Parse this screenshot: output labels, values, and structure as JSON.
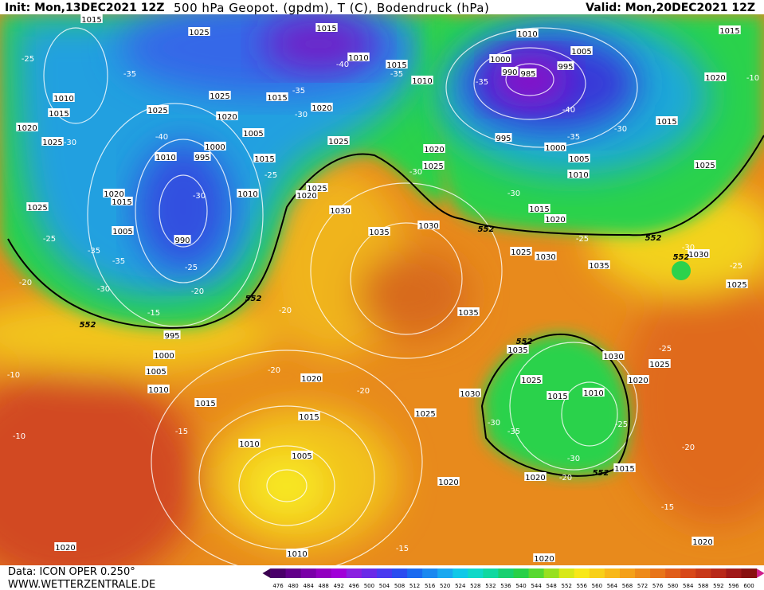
{
  "header": {
    "init": "Init: Mon,13DEC2021 12Z",
    "title": "500 hPa Geopot. (gpdm), T (C), Bodendruck (hPa)",
    "valid": "Valid: Mon,20DEC2021 12Z"
  },
  "footer": {
    "data": "Data: ICON OPER 0.250°",
    "site": "WWW.WETTERZENTRALE.DE"
  },
  "pressure_labels": [
    "1015",
    "1025",
    "1015",
    "1010",
    "1010",
    "1005",
    "1015",
    "1000",
    "990",
    "985",
    "995",
    "1020",
    "1015",
    "1010",
    "1010",
    "1015",
    "1020",
    "1025",
    "1025",
    "1025",
    "1020",
    "1015",
    "1020",
    "1005",
    "1000",
    "995",
    "1010",
    "1015",
    "1025",
    "1020",
    "1025",
    "995",
    "1000",
    "1005",
    "1010",
    "1015",
    "1025",
    "1020",
    "1015",
    "1025",
    "1010",
    "1020",
    "1025",
    "1030",
    "1005",
    "990",
    "1035",
    "1030",
    "1015",
    "1020",
    "1025",
    "1030",
    "1035",
    "1030",
    "1025",
    "1035",
    "1035",
    "1030",
    "1025",
    "1020",
    "995",
    "1000",
    "1005",
    "1010",
    "1015",
    "1020",
    "1015",
    "1010",
    "1005",
    "1030",
    "1025",
    "1025",
    "1015",
    "1010",
    "1020",
    "1020",
    "1015",
    "1020",
    "1010",
    "1020",
    "1020"
  ],
  "temperature_labels": [
    "-25",
    "-35",
    "-40",
    "-35",
    "-30",
    "-35",
    "-35",
    "-40",
    "-30",
    "-35",
    "-30",
    "-40",
    "-25",
    "-30",
    "-30",
    "-30",
    "-25",
    "-35",
    "-35",
    "-30",
    "-25",
    "-20",
    "-20",
    "-15",
    "-20",
    "-20",
    "-20",
    "-25",
    "-25",
    "-30",
    "-25",
    "-30",
    "-35",
    "-25",
    "-30",
    "-20",
    "-20",
    "-15",
    "-10",
    "-10",
    "-15",
    "-15",
    "-10"
  ],
  "geopotential_labels": [
    "552",
    "552",
    "552",
    "552",
    "552",
    "552",
    "552"
  ],
  "legend": [
    "476",
    "480",
    "484",
    "488",
    "492",
    "496",
    "500",
    "504",
    "508",
    "512",
    "516",
    "520",
    "524",
    "528",
    "532",
    "536",
    "540",
    "544",
    "548",
    "552",
    "556",
    "560",
    "564",
    "568",
    "572",
    "576",
    "580",
    "584",
    "588",
    "592",
    "596",
    "600"
  ]
}
